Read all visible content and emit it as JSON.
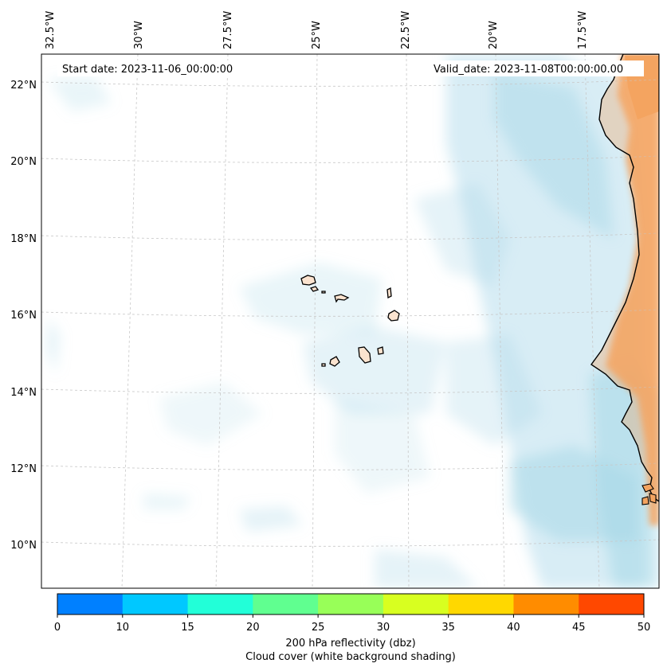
{
  "map": {
    "start_date": "Start date: 2023-11-06_00:00:00",
    "valid_date": "Valid_date: 2023-11-08T00:00:00.00",
    "lon_labels": [
      "32.5°W",
      "30°W",
      "27.5°W",
      "25°W",
      "22.5°W",
      "20°W",
      "17.5°W"
    ],
    "lat_labels": [
      "22°N",
      "20°N",
      "18°N",
      "16°N",
      "14°N",
      "12°N",
      "10°N"
    ]
  },
  "colorbar": {
    "ticks": [
      "0",
      "10",
      "15",
      "20",
      "25",
      "30",
      "35",
      "40",
      "45",
      "50"
    ],
    "colors": [
      "#0080ff",
      "#00c8ff",
      "#22ffd8",
      "#60ff90",
      "#98ff58",
      "#d8ff20",
      "#ffd800",
      "#ff8c00",
      "#ff4800"
    ],
    "label_line1": "200 hPa reflectivity (dbz)",
    "label_line2": "Cloud cover (white background shading)"
  },
  "colors": {
    "land_fill": "#fbe3cf",
    "reflectivity_shading": "#f4a460",
    "cloud_shading": "#a8d8e8"
  }
}
